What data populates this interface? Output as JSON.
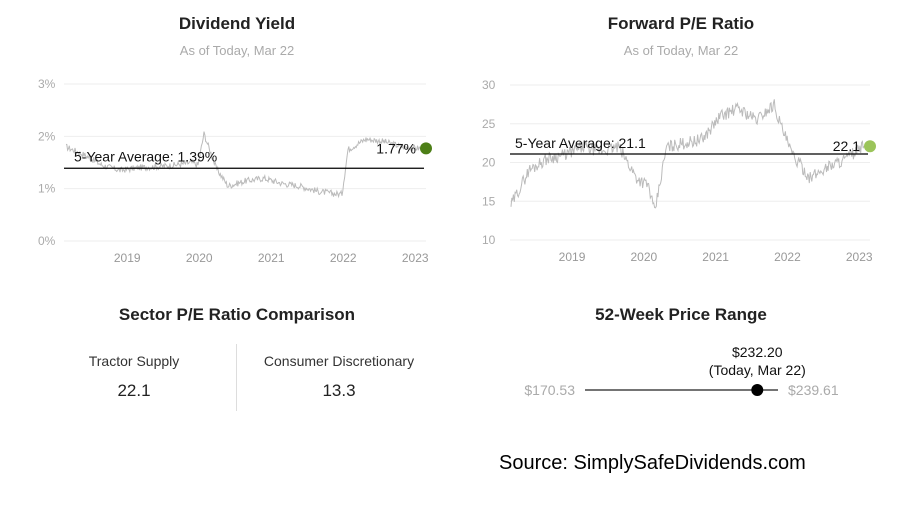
{
  "charts": {
    "dividend": {
      "title": "Dividend Yield",
      "subtitle": "As of Today, Mar 22",
      "y_ticks": [
        "3%",
        "2%",
        "1%",
        "0%"
      ],
      "x_ticks": [
        "2019",
        "2020",
        "2021",
        "2022",
        "2023"
      ],
      "avg_label": "5-Year Average: 1.39%",
      "current_label": "1.77%",
      "line_color": "#bbbbbb",
      "avg_color": "#000000",
      "dot_color": "#4d7f17"
    },
    "pe": {
      "title": "Forward P/E Ratio",
      "subtitle": "As of Today, Mar 22",
      "y_ticks": [
        "30",
        "25",
        "20",
        "15",
        "10"
      ],
      "x_ticks": [
        "2019",
        "2020",
        "2021",
        "2022",
        "2023"
      ],
      "avg_label": "5-Year Average: 21.1",
      "current_label": "22.1",
      "line_color": "#bbbbbb",
      "avg_color": "#000000",
      "dot_color": "#9bc45a"
    }
  },
  "sector": {
    "title": "Sector P/E Ratio Comparison",
    "left_label": "Tractor Supply",
    "left_value": "22.1",
    "right_label": "Consumer Discretionary",
    "right_value": "13.3"
  },
  "range": {
    "title": "52-Week Price Range",
    "low": "$170.53",
    "high": "$239.61",
    "current": "$232.20",
    "current_note": "(Today, Mar 22)",
    "low_value": 170.53,
    "high_value": 239.61,
    "current_value": 232.2
  },
  "source": "Source: SimplySafeDividends.com",
  "chart_data": [
    {
      "type": "line",
      "title": "Dividend Yield",
      "subtitle": "As of Today, Mar 22",
      "y_unit": "%",
      "ylim": [
        0,
        3
      ],
      "x_ticks": [
        "2019",
        "2020",
        "2021",
        "2022",
        "2023"
      ],
      "grid": true,
      "average": 1.39,
      "current": 1.77,
      "x": [
        "2018-04",
        "2018-07",
        "2018-10",
        "2019-01",
        "2019-04",
        "2019-07",
        "2019-10",
        "2020-01",
        "2020-02",
        "2020-03",
        "2020-05",
        "2020-07",
        "2020-10",
        "2021-01",
        "2021-04",
        "2021-07",
        "2021-10",
        "2022-01",
        "2022-02",
        "2022-03",
        "2022-06",
        "2022-09",
        "2022-12",
        "2023-03"
      ],
      "values": [
        1.8,
        1.65,
        1.45,
        1.35,
        1.4,
        1.42,
        1.45,
        1.5,
        1.45,
        2.05,
        1.4,
        1.05,
        1.15,
        1.2,
        1.1,
        1.05,
        0.95,
        0.9,
        0.9,
        1.75,
        1.95,
        1.9,
        1.8,
        1.77
      ]
    },
    {
      "type": "line",
      "title": "Forward P/E Ratio",
      "subtitle": "As of Today, Mar 22",
      "ylim": [
        10,
        30
      ],
      "x_ticks": [
        "2019",
        "2020",
        "2021",
        "2022",
        "2023"
      ],
      "grid": true,
      "average": 21.1,
      "current": 22.1,
      "x": [
        "2018-04",
        "2018-07",
        "2018-10",
        "2019-01",
        "2019-04",
        "2019-07",
        "2019-10",
        "2020-01",
        "2020-03",
        "2020-04",
        "2020-06",
        "2020-09",
        "2020-12",
        "2021-03",
        "2021-06",
        "2021-09",
        "2021-12",
        "2022-01",
        "2022-03",
        "2022-06",
        "2022-09",
        "2022-12",
        "2023-03"
      ],
      "values": [
        14.5,
        19,
        20.5,
        21,
        22,
        21.5,
        22,
        18,
        17,
        13.5,
        22,
        22.5,
        23,
        26,
        27,
        25.5,
        27.5,
        25,
        21,
        18,
        19.5,
        20.5,
        22.1
      ]
    }
  ]
}
